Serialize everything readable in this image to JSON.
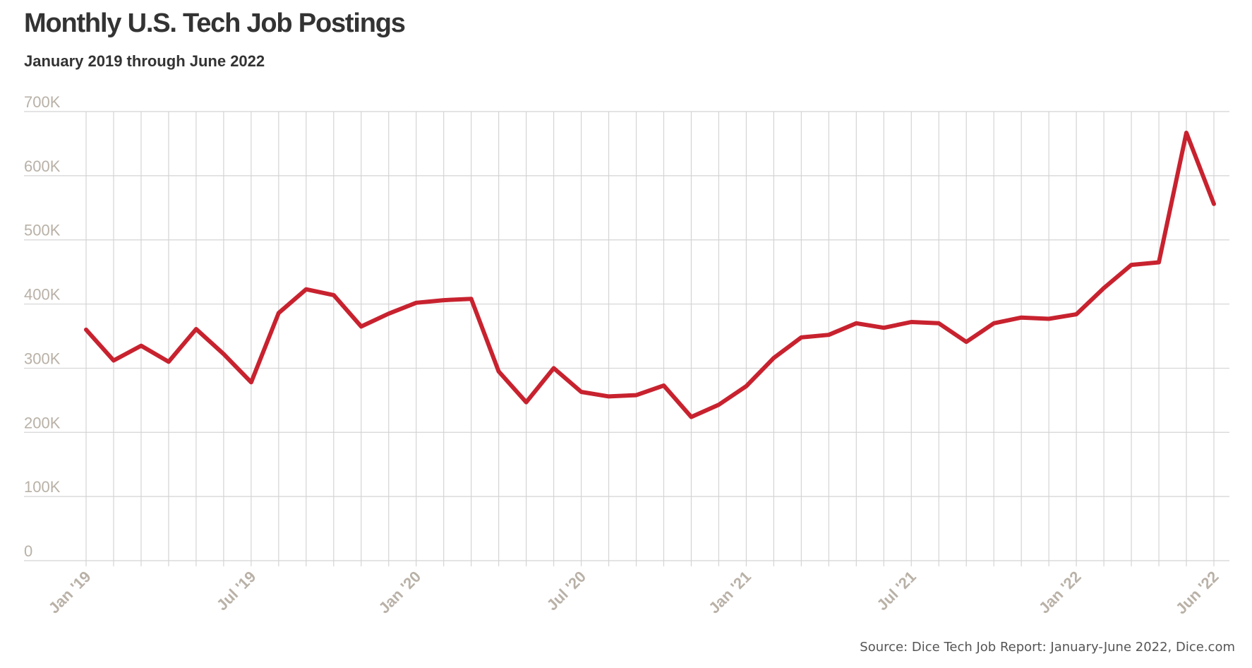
{
  "header": {
    "title": "Monthly U.S. Tech Job Postings",
    "subtitle": "January 2019 through June 2022"
  },
  "footer": {
    "source": "Source: Dice Tech Job Report: January-June 2022, Dice.com"
  },
  "colors": {
    "line": "#c8222f",
    "grid": "#d4d4d4",
    "tick_text": "#b9b1a7",
    "title_text": "#333333"
  },
  "chart_data": {
    "type": "line",
    "title": "Monthly U.S. Tech Job Postings",
    "subtitle": "January 2019 through June 2022",
    "xlabel": "",
    "ylabel": "",
    "ylim": [
      0,
      700000
    ],
    "grid": true,
    "y_ticks": [
      0,
      100000,
      200000,
      300000,
      400000,
      500000,
      600000,
      700000
    ],
    "y_tick_labels": [
      "0",
      "100K",
      "200K",
      "300K",
      "400K",
      "500K",
      "600K",
      "700K"
    ],
    "x_tick_labels": [
      {
        "month": "2019-01",
        "label": "Jan '19"
      },
      {
        "month": "2019-07",
        "label": "Jul '19"
      },
      {
        "month": "2020-01",
        "label": "Jan '20"
      },
      {
        "month": "2020-07",
        "label": "Jul '20"
      },
      {
        "month": "2021-01",
        "label": "Jan '21"
      },
      {
        "month": "2021-07",
        "label": "Jul '21"
      },
      {
        "month": "2022-01",
        "label": "Jan '22"
      },
      {
        "month": "2022-06",
        "label": "Jun '22"
      }
    ],
    "x": [
      "2019-01",
      "2019-02",
      "2019-03",
      "2019-04",
      "2019-05",
      "2019-06",
      "2019-07",
      "2019-08",
      "2019-09",
      "2019-10",
      "2019-11",
      "2019-12",
      "2020-01",
      "2020-02",
      "2020-03",
      "2020-04",
      "2020-05",
      "2020-06",
      "2020-07",
      "2020-08",
      "2020-09",
      "2020-10",
      "2020-11",
      "2020-12",
      "2021-01",
      "2021-02",
      "2021-03",
      "2021-04",
      "2021-05",
      "2021-06",
      "2021-07",
      "2021-08",
      "2021-09",
      "2021-10",
      "2021-11",
      "2021-12",
      "2022-01",
      "2022-02",
      "2022-03",
      "2022-04",
      "2022-05",
      "2022-06"
    ],
    "series": [
      {
        "values": [
          360000,
          312000,
          335000,
          310000,
          361000,
          322000,
          278000,
          386000,
          423000,
          414000,
          365000,
          385000,
          402000,
          406000,
          408000,
          295000,
          247000,
          300000,
          263000,
          256000,
          258000,
          273000,
          224000,
          243000,
          272000,
          316000,
          348000,
          352000,
          370000,
          363000,
          372000,
          370000,
          341000,
          370000,
          379000,
          377000,
          384000,
          425000,
          461000,
          465000,
          667000,
          556000
        ]
      }
    ]
  }
}
